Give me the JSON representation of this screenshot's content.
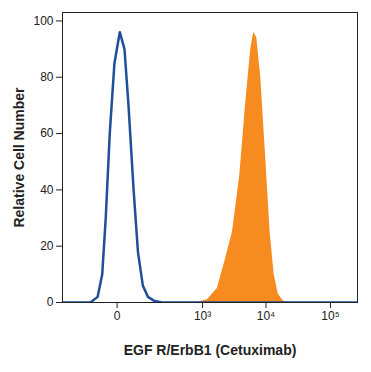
{
  "chart_data": {
    "type": "histogram",
    "x_label": "EGF R/ErbB1 (Cetuximab)",
    "y_label": "Relative Cell Number",
    "log": "x",
    "xlim": [
      -300,
      262144
    ],
    "xticks": [
      0,
      {
        "value": 1000,
        "label": "10³"
      },
      {
        "value": 10000,
        "label": "10⁴"
      },
      {
        "value": 100000,
        "label": "10⁵"
      }
    ],
    "ylim": [
      0,
      103
    ],
    "yticks": [
      0,
      20,
      40,
      60,
      80,
      100
    ],
    "series": [
      {
        "type": "line",
        "color": "#1f4f9a",
        "x": [
          -300,
          -80,
          -50,
          -35,
          -25,
          -15,
          -5,
          5,
          15,
          25,
          40,
          55,
          75,
          100,
          140,
          200,
          1000,
          262144
        ],
        "values": [
          0,
          0,
          2,
          10,
          30,
          60,
          85,
          96,
          90,
          70,
          40,
          18,
          6,
          2,
          0.5,
          0,
          0,
          0
        ]
      },
      {
        "type": "area",
        "color": "#f68b1f",
        "x": [
          800,
          1200,
          1730,
          2300,
          3000,
          3900,
          4800,
          5800,
          6450,
          7200,
          8300,
          10000,
          11600,
          13400,
          15500,
          18600,
          22400
        ],
        "values": [
          0,
          1,
          5,
          15,
          25,
          45,
          70,
          90,
          96,
          94,
          80,
          50,
          25,
          10,
          3,
          0.5,
          0
        ]
      }
    ]
  }
}
